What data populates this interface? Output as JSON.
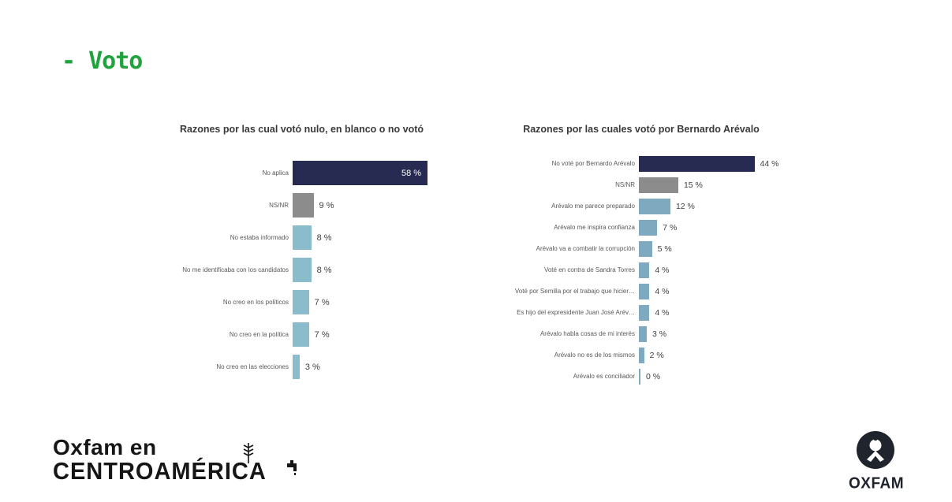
{
  "page": {
    "title": "- Voto",
    "title_color": "#1fa33c",
    "background": "#ffffff"
  },
  "colors": {
    "navy": "#272b52",
    "gray": "#8c8c8c",
    "light_blue_left": "#8bbccb",
    "light_blue_right": "#7fa9bf",
    "value_text": "#404040",
    "value_text_inside": "#ffffff",
    "category_text": "#595959",
    "chart_title_text": "#3a3a3a",
    "logo_black": "#20242c"
  },
  "chart_data": [
    {
      "type": "bar",
      "orientation": "horizontal",
      "title": "Razones por las cual votó nulo, en blanco o no votó",
      "categories": [
        "No aplica",
        "NS/NR",
        "No estaba informado",
        "No me identificaba con los candidatos",
        "No creo en los políticos",
        "No creo en la política",
        "No creo en las elecciones"
      ],
      "values": [
        58,
        9,
        8,
        8,
        7,
        7,
        3
      ],
      "value_labels": [
        "58 %",
        "9 %",
        "8 %",
        "8 %",
        "7 %",
        "7 %",
        "3 %"
      ],
      "bar_colors": [
        "#272b52",
        "#8c8c8c",
        "#8bbccb",
        "#8bbccb",
        "#8bbccb",
        "#8bbccb",
        "#8bbccb"
      ],
      "value_inside": [
        true,
        false,
        false,
        false,
        false,
        false,
        false
      ],
      "xlabel": "",
      "ylabel": "",
      "xlim": [
        0,
        60
      ],
      "grid": false,
      "legend": "none",
      "data_labels": true
    },
    {
      "type": "bar",
      "orientation": "horizontal",
      "title": "Razones por las cuales votó por Bernardo Arévalo",
      "categories": [
        "No voté por Bernardo Arévalo",
        "NS/NR",
        "Arévalo me parece preparado",
        "Arévalo me inspira confianza",
        "Arévalo va a combatir la corrupción",
        "Voté en contra de Sandra Torres",
        "Voté por Semilla por el trabajo que hicier…",
        "Es hijo del expresidente Juan José Arév…",
        "Arévalo habla cosas de mi interés",
        "Arévalo no es de los mismos",
        "Arévalo es conciliador"
      ],
      "values": [
        44,
        15,
        12,
        7,
        5,
        4,
        4,
        4,
        3,
        2,
        0
      ],
      "value_labels": [
        "44 %",
        "15 %",
        "12 %",
        "7 %",
        "5 %",
        "4 %",
        "4 %",
        "4 %",
        "3 %",
        "2 %",
        "0 %"
      ],
      "bar_colors": [
        "#272b52",
        "#8c8c8c",
        "#7fa9bf",
        "#7fa9bf",
        "#7fa9bf",
        "#7fa9bf",
        "#7fa9bf",
        "#7fa9bf",
        "#7fa9bf",
        "#7fa9bf",
        "#7fa9bf"
      ],
      "value_inside": [
        false,
        false,
        false,
        false,
        false,
        false,
        false,
        false,
        false,
        false,
        false
      ],
      "xlabel": "",
      "ylabel": "",
      "xlim": [
        0,
        48
      ],
      "grid": false,
      "legend": "none",
      "data_labels": true
    }
  ],
  "footer": {
    "left_logo": {
      "line1": "Oxfam en",
      "line2": "CENTROAMÉRICA"
    },
    "right_logo": {
      "text": "OXFAM"
    }
  }
}
